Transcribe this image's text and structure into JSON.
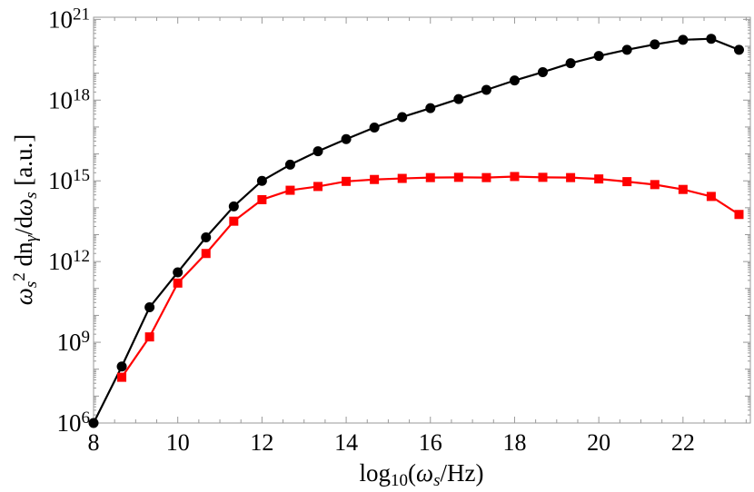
{
  "chart_data": {
    "type": "line",
    "title": "",
    "xlabel": "log_{10}(ω_{s}/Hz)",
    "ylabel": "ω_{s}^{2} dn_{γ}/dω_{s} [a.u.]",
    "xlim": [
      8,
      23.6
    ],
    "ylim": [
      1000000.0,
      1.2e+21
    ],
    "yscale": "log",
    "grid": false,
    "legend": "none",
    "x_ticks": [
      8,
      10,
      12,
      14,
      16,
      18,
      20,
      22
    ],
    "y_ticks": [
      {
        "base": "10",
        "exp": "6",
        "value": 1000000.0
      },
      {
        "base": "10",
        "exp": "9",
        "value": 1000000000.0
      },
      {
        "base": "10",
        "exp": "12",
        "value": 1000000000000.0
      },
      {
        "base": "10",
        "exp": "15",
        "value": 1000000000000000.0
      },
      {
        "base": "10",
        "exp": "18",
        "value": 1e+18
      },
      {
        "base": "10",
        "exp": "21",
        "value": 1e+21
      }
    ],
    "x": [
      8.0,
      8.67,
      9.33,
      10.0,
      10.67,
      11.33,
      12.0,
      12.67,
      13.33,
      14.0,
      14.67,
      15.33,
      16.0,
      16.67,
      17.33,
      18.0,
      18.67,
      19.33,
      20.0,
      20.67,
      21.33,
      22.0,
      22.67,
      23.33
    ],
    "series": [
      {
        "color": "#000000",
        "marker": "circle",
        "log10_values": [
          6.0,
          8.1,
          10.3,
          11.6,
          12.9,
          14.05,
          15.0,
          15.6,
          16.1,
          16.55,
          16.98,
          17.37,
          17.7,
          18.04,
          18.38,
          18.73,
          19.04,
          19.37,
          19.64,
          19.87,
          20.07,
          20.24,
          20.28,
          19.87
        ]
      },
      {
        "color": "#ff0000",
        "marker": "square",
        "log10_values": [
          null,
          7.7,
          9.2,
          11.2,
          12.3,
          13.5,
          14.3,
          14.65,
          14.79,
          14.98,
          15.05,
          15.09,
          15.12,
          15.13,
          15.12,
          15.16,
          15.13,
          15.12,
          15.07,
          14.97,
          14.86,
          14.68,
          14.42,
          13.75
        ]
      }
    ]
  }
}
